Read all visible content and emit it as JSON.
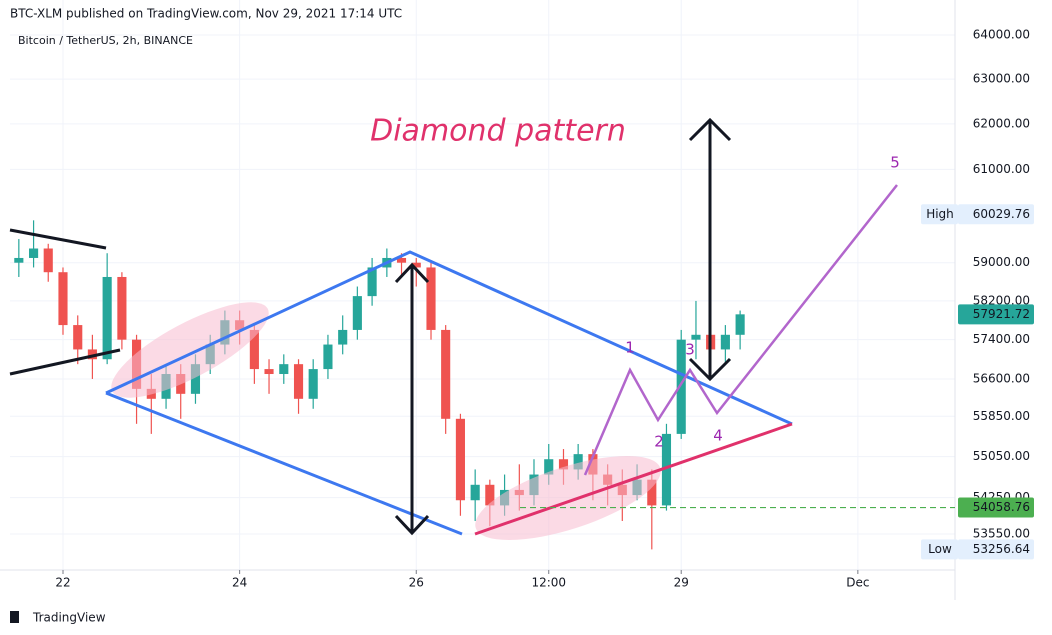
{
  "header": "BTC-XLM published on TradingView.com, Nov 29, 2021 17:14 UTC",
  "footer": "TradingView",
  "chart_data": {
    "type": "candlestick",
    "title": "Bitcoin / TetherUS, 2h, BINANCE",
    "log_scale": true,
    "grid": true,
    "up_color": "#26a69a",
    "down_color": "#ef5350",
    "xlim": [
      21.4,
      32.1
    ],
    "xticks": [
      22,
      24,
      26,
      {
        "value": 27.5,
        "label": "12:00"
      },
      29,
      {
        "value": 31,
        "label": "Dec"
      }
    ],
    "ylim": [
      52866,
      64229
    ],
    "yticks": [
      {
        "value": 64000,
        "label": "64000.00"
      },
      {
        "value": 63000,
        "label": "63000.00"
      },
      {
        "value": 62000,
        "label": "62000.00"
      },
      {
        "value": 61000,
        "label": "61000.00"
      },
      {
        "value": 59000,
        "label": "59000.00"
      },
      {
        "value": 58200,
        "label": "58200.00"
      },
      {
        "value": 57400,
        "label": "57400.00"
      },
      {
        "value": 56600,
        "label": "56600.00"
      },
      {
        "value": 55850,
        "label": "55850.00"
      },
      {
        "value": 55050,
        "label": "55050.00"
      },
      {
        "value": 54250,
        "label": "54250.00"
      },
      {
        "value": 53550,
        "label": "53550.00"
      }
    ],
    "x": [
      21.5,
      21.667,
      21.833,
      22.0,
      22.167,
      22.333,
      22.5,
      22.667,
      22.833,
      23.0,
      23.167,
      23.333,
      23.5,
      23.667,
      23.833,
      24.0,
      24.167,
      24.333,
      24.5,
      24.667,
      24.833,
      25.0,
      25.167,
      25.333,
      25.5,
      25.667,
      25.833,
      26.0,
      26.167,
      26.333,
      26.5,
      26.667,
      26.833,
      27.0,
      27.167,
      27.333,
      27.5,
      27.667,
      27.833,
      28.0,
      28.167,
      28.333,
      28.5,
      28.667,
      28.833,
      29.0,
      29.167,
      29.333,
      29.5,
      29.667
    ],
    "open": [
      59000,
      59100,
      59300,
      58800,
      57700,
      57200,
      57000,
      58700,
      57400,
      56400,
      56200,
      56700,
      56300,
      56900,
      57300,
      57800,
      57600,
      56800,
      56700,
      56900,
      56200,
      56800,
      57300,
      57600,
      58300,
      58900,
      59100,
      59000,
      58900,
      57600,
      55800,
      54200,
      54500,
      54100,
      54400,
      54300,
      54700,
      55000,
      54800,
      55100,
      54700,
      54500,
      54300,
      54600,
      54100,
      55500,
      57400,
      57500,
      57200,
      57500
    ],
    "high": [
      59500,
      59900,
      59400,
      58900,
      57900,
      57500,
      59200,
      58800,
      57500,
      56700,
      56900,
      56900,
      57100,
      57500,
      58000,
      58000,
      57700,
      57000,
      57100,
      57000,
      57000,
      57500,
      57900,
      58500,
      59100,
      59300,
      59200,
      59100,
      59000,
      57700,
      55900,
      54800,
      54600,
      54700,
      54900,
      55000,
      55300,
      55200,
      55300,
      55200,
      54900,
      54800,
      54900,
      54800,
      55700,
      57600,
      58200,
      57700,
      57700,
      58000
    ],
    "low": [
      58700,
      58900,
      58600,
      57500,
      56900,
      56600,
      56900,
      57200,
      55700,
      55500,
      56000,
      55800,
      56100,
      56700,
      57100,
      57300,
      56500,
      56300,
      56500,
      55900,
      56000,
      56600,
      57100,
      57400,
      58100,
      58700,
      58700,
      58500,
      57400,
      55500,
      53900,
      53800,
      53700,
      53900,
      54000,
      54100,
      54500,
      54500,
      54600,
      54200,
      54100,
      53800,
      54200,
      53256.64,
      54000,
      55400,
      57000,
      56800,
      56900,
      57200
    ],
    "close": [
      59100,
      59300,
      58800,
      57700,
      57200,
      57000,
      58700,
      57400,
      56400,
      56200,
      56700,
      56300,
      56900,
      57300,
      57800,
      57600,
      56800,
      56700,
      56900,
      56200,
      56800,
      57300,
      57600,
      58300,
      58900,
      59100,
      59000,
      58900,
      57600,
      55800,
      54200,
      54500,
      54100,
      54400,
      54300,
      54700,
      55000,
      54800,
      55100,
      54700,
      54500,
      54300,
      54600,
      54100,
      55500,
      57400,
      57500,
      57200,
      57500,
      57921.72
    ],
    "price_labels": [
      {
        "name": "High",
        "value": 60029.76,
        "color": "#e3effd",
        "text_color": "#131722"
      },
      {
        "value": 57921.72,
        "color": "#26a69a",
        "text_color": "#ffffff"
      },
      {
        "value": 54058.76,
        "color": "#4caf50",
        "text_color": "#ffffff",
        "line": true
      },
      {
        "name": "Low",
        "value": 53256.64,
        "color": "#e3effd",
        "text_color": "#131722"
      }
    ],
    "annotations": [
      "Diamond pattern",
      "1",
      "2",
      "3",
      "4",
      "5"
    ]
  }
}
